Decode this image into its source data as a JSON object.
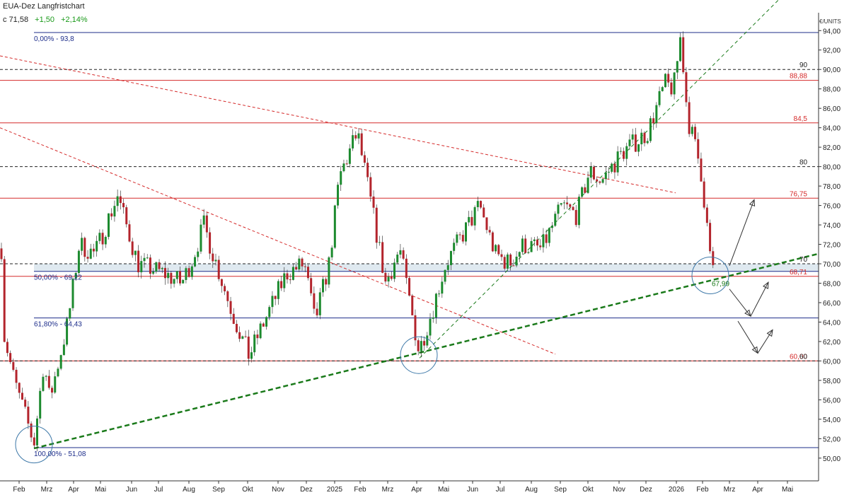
{
  "header": {
    "title": "EUA-Dez Langfristchart",
    "close_label": "c",
    "close_value": "71,58",
    "change_abs": "+1,50",
    "change_pct": "+2,14%",
    "unit_label": "€/UNITS"
  },
  "colors": {
    "up": "#1c8a2e",
    "down": "#b3242c",
    "resistance": "#d52b2b",
    "fib": "#1c2c8a",
    "trend": "#1a7a1a",
    "zone": "#dfe9f0",
    "circle": "#3d78a8",
    "arrow": "#333333"
  },
  "chart_data": {
    "type": "candlestick",
    "title": "EUA-Dez Langfristchart",
    "ylabel": "€/UNITS",
    "ylim": [
      49,
      95
    ],
    "x_ticks": [
      "Feb",
      "Mrz",
      "Apr",
      "Mai",
      "Jun",
      "Jul",
      "Aug",
      "Sep",
      "Okt",
      "Nov",
      "Dez",
      "2025",
      "Feb",
      "Mrz",
      "Apr",
      "Mai",
      "Jun",
      "Jul",
      "Aug",
      "Sep",
      "Okt",
      "Nov",
      "Dez",
      "2026",
      "Feb",
      "Mrz",
      "Apr",
      "Mai"
    ],
    "y_ticks": [
      "50,00",
      "52,00",
      "54,00",
      "56,00",
      "58,00",
      "60,00",
      "62,00",
      "64,00",
      "66,00",
      "68,00",
      "70,00",
      "72,00",
      "74,00",
      "76,00",
      "78,00",
      "80,00",
      "82,00",
      "84,00",
      "86,00",
      "88,00",
      "90,00",
      "92,00",
      "94,00"
    ],
    "price_path": [
      [
        "Feb 2024",
        63.0
      ],
      [
        "Feb 2024",
        58.0
      ],
      [
        "Feb 2024",
        51.5
      ],
      [
        "Mrz 2024",
        60.0
      ],
      [
        "Mrz 2024",
        56.0
      ],
      [
        "Apr 2024",
        64.0
      ],
      [
        "Apr 2024",
        72.0
      ],
      [
        "Mai 2024",
        71.0
      ],
      [
        "Mai 2024",
        77.0
      ],
      [
        "Jun 2024",
        70.0
      ],
      [
        "Jul 2024",
        69.0
      ],
      [
        "Jul 2024",
        68.0
      ],
      [
        "Aug 2024",
        70.5
      ],
      [
        "Aug 2024",
        74.0
      ],
      [
        "Sep 2024",
        65.0
      ],
      [
        "Okt 2024",
        60.5
      ],
      [
        "Okt 2024",
        63.5
      ],
      [
        "Nov 2024",
        69.0
      ],
      [
        "Dez 2024",
        70.0
      ],
      [
        "Dez 2024",
        64.0
      ],
      [
        "2025",
        70.0
      ],
      [
        "2025",
        79.0
      ],
      [
        "Feb 2025",
        83.5
      ],
      [
        "Feb 2025",
        76.0
      ],
      [
        "Mrz 2025",
        68.0
      ],
      [
        "Mrz 2025",
        71.5
      ],
      [
        "Apr 2025",
        61.0
      ],
      [
        "Apr 2025",
        65.0
      ],
      [
        "Mai 2025",
        70.0
      ],
      [
        "Mai 2025",
        72.5
      ],
      [
        "Jun 2025",
        76.0
      ],
      [
        "Jun 2025",
        71.0
      ],
      [
        "Jul 2025",
        70.0
      ],
      [
        "Jul 2025",
        72.0
      ],
      [
        "Aug 2025",
        71.5
      ],
      [
        "Sep 2025",
        76.0
      ],
      [
        "Sep 2025",
        75.0
      ],
      [
        "Okt 2025",
        79.5
      ],
      [
        "Okt 2025",
        78.5
      ],
      [
        "Nov 2025",
        81.5
      ],
      [
        "Dez 2025",
        83.5
      ],
      [
        "Dez 2025",
        88.5
      ],
      [
        "2026",
        88.0
      ],
      [
        "2026",
        93.5
      ],
      [
        "2026",
        85.0
      ],
      [
        "Feb 2026",
        80.0
      ],
      [
        "Feb 2026",
        71.5
      ],
      [
        "Feb 2026",
        68.0
      ],
      [
        "Feb 2026",
        71.58
      ]
    ],
    "horizontal_levels": [
      {
        "value": 93.8,
        "kind": "fib",
        "label": "0,00% - 93,8"
      },
      {
        "value": 88.88,
        "kind": "resistance",
        "label": "88,88"
      },
      {
        "value": 84.5,
        "kind": "resistance",
        "label": "84,5"
      },
      {
        "value": 76.75,
        "kind": "resistance",
        "label": "76,75"
      },
      {
        "value": 69.22,
        "kind": "fib",
        "label": "50,00% - 69,22"
      },
      {
        "value": 68.71,
        "kind": "resistance",
        "label": "68,71"
      },
      {
        "value": 64.43,
        "kind": "fib",
        "label": "61,80% - 64,43"
      },
      {
        "value": 60.0,
        "kind": "resistance",
        "label": "60,00"
      },
      {
        "value": 51.08,
        "kind": "fib",
        "label": "100,00% - 51,08"
      },
      {
        "value": 90,
        "kind": "round",
        "label": "90"
      },
      {
        "value": 80,
        "kind": "round",
        "label": "80"
      },
      {
        "value": 70,
        "kind": "round",
        "label": "70"
      },
      {
        "value": 60,
        "kind": "round",
        "label": "60"
      }
    ],
    "support_zone": [
      69.2,
      70.0
    ],
    "annotations": [
      {
        "text": "67,99",
        "value": 67.99
      }
    ]
  }
}
